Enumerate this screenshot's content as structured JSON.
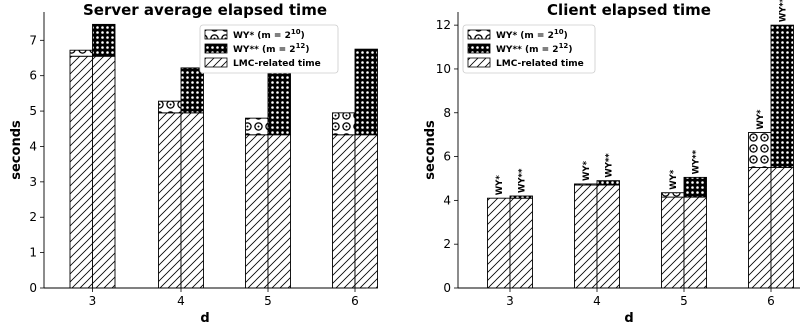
{
  "chart_data": [
    {
      "type": "bar",
      "title": "Server average elapsed time",
      "xlabel": "d",
      "ylabel": "seconds",
      "categories": [
        "3",
        "4",
        "5",
        "6"
      ],
      "ylim": [
        0,
        7.8
      ],
      "yticks": [
        0,
        1,
        2,
        3,
        4,
        5,
        6,
        7
      ],
      "legend_position": "top-right",
      "legend": [
        "WY* (m = 2^10)",
        "WY** (m = 2^12)",
        "LMC-related time"
      ],
      "series": [
        {
          "name": "LMC-related time",
          "bar": "WY*",
          "values": [
            6.55,
            4.95,
            4.33,
            4.33
          ]
        },
        {
          "name": "WY* (m = 2^10)",
          "bar": "WY*",
          "values": [
            0.17,
            0.33,
            0.47,
            0.62
          ]
        },
        {
          "name": "LMC-related time",
          "bar": "WY**",
          "values": [
            6.55,
            4.95,
            4.33,
            4.33
          ]
        },
        {
          "name": "WY** (m = 2^12)",
          "bar": "WY**",
          "values": [
            0.9,
            1.27,
            1.77,
            2.42
          ]
        }
      ],
      "bar_labels": []
    },
    {
      "type": "bar",
      "title": "Client elapsed time",
      "xlabel": "d",
      "ylabel": "seconds",
      "categories": [
        "3",
        "4",
        "5",
        "6"
      ],
      "ylim": [
        0,
        12.6
      ],
      "yticks": [
        0,
        2,
        4,
        6,
        8,
        10,
        12
      ],
      "legend_position": "top-left",
      "legend": [
        "WY* (m = 2^10)",
        "WY** (m = 2^12)",
        "LMC-related time"
      ],
      "series": [
        {
          "name": "LMC-related time",
          "bar": "WY*",
          "values": [
            4.1,
            4.7,
            4.15,
            5.5
          ]
        },
        {
          "name": "WY* (m = 2^10)",
          "bar": "WY*",
          "values": [
            0.0,
            0.05,
            0.2,
            1.6
          ]
        },
        {
          "name": "LMC-related time",
          "bar": "WY**",
          "values": [
            4.1,
            4.7,
            4.15,
            5.5
          ]
        },
        {
          "name": "WY** (m = 2^12)",
          "bar": "WY**",
          "values": [
            0.1,
            0.2,
            0.9,
            6.5
          ]
        }
      ],
      "bar_labels": [
        "WY*",
        "WY**"
      ]
    }
  ]
}
